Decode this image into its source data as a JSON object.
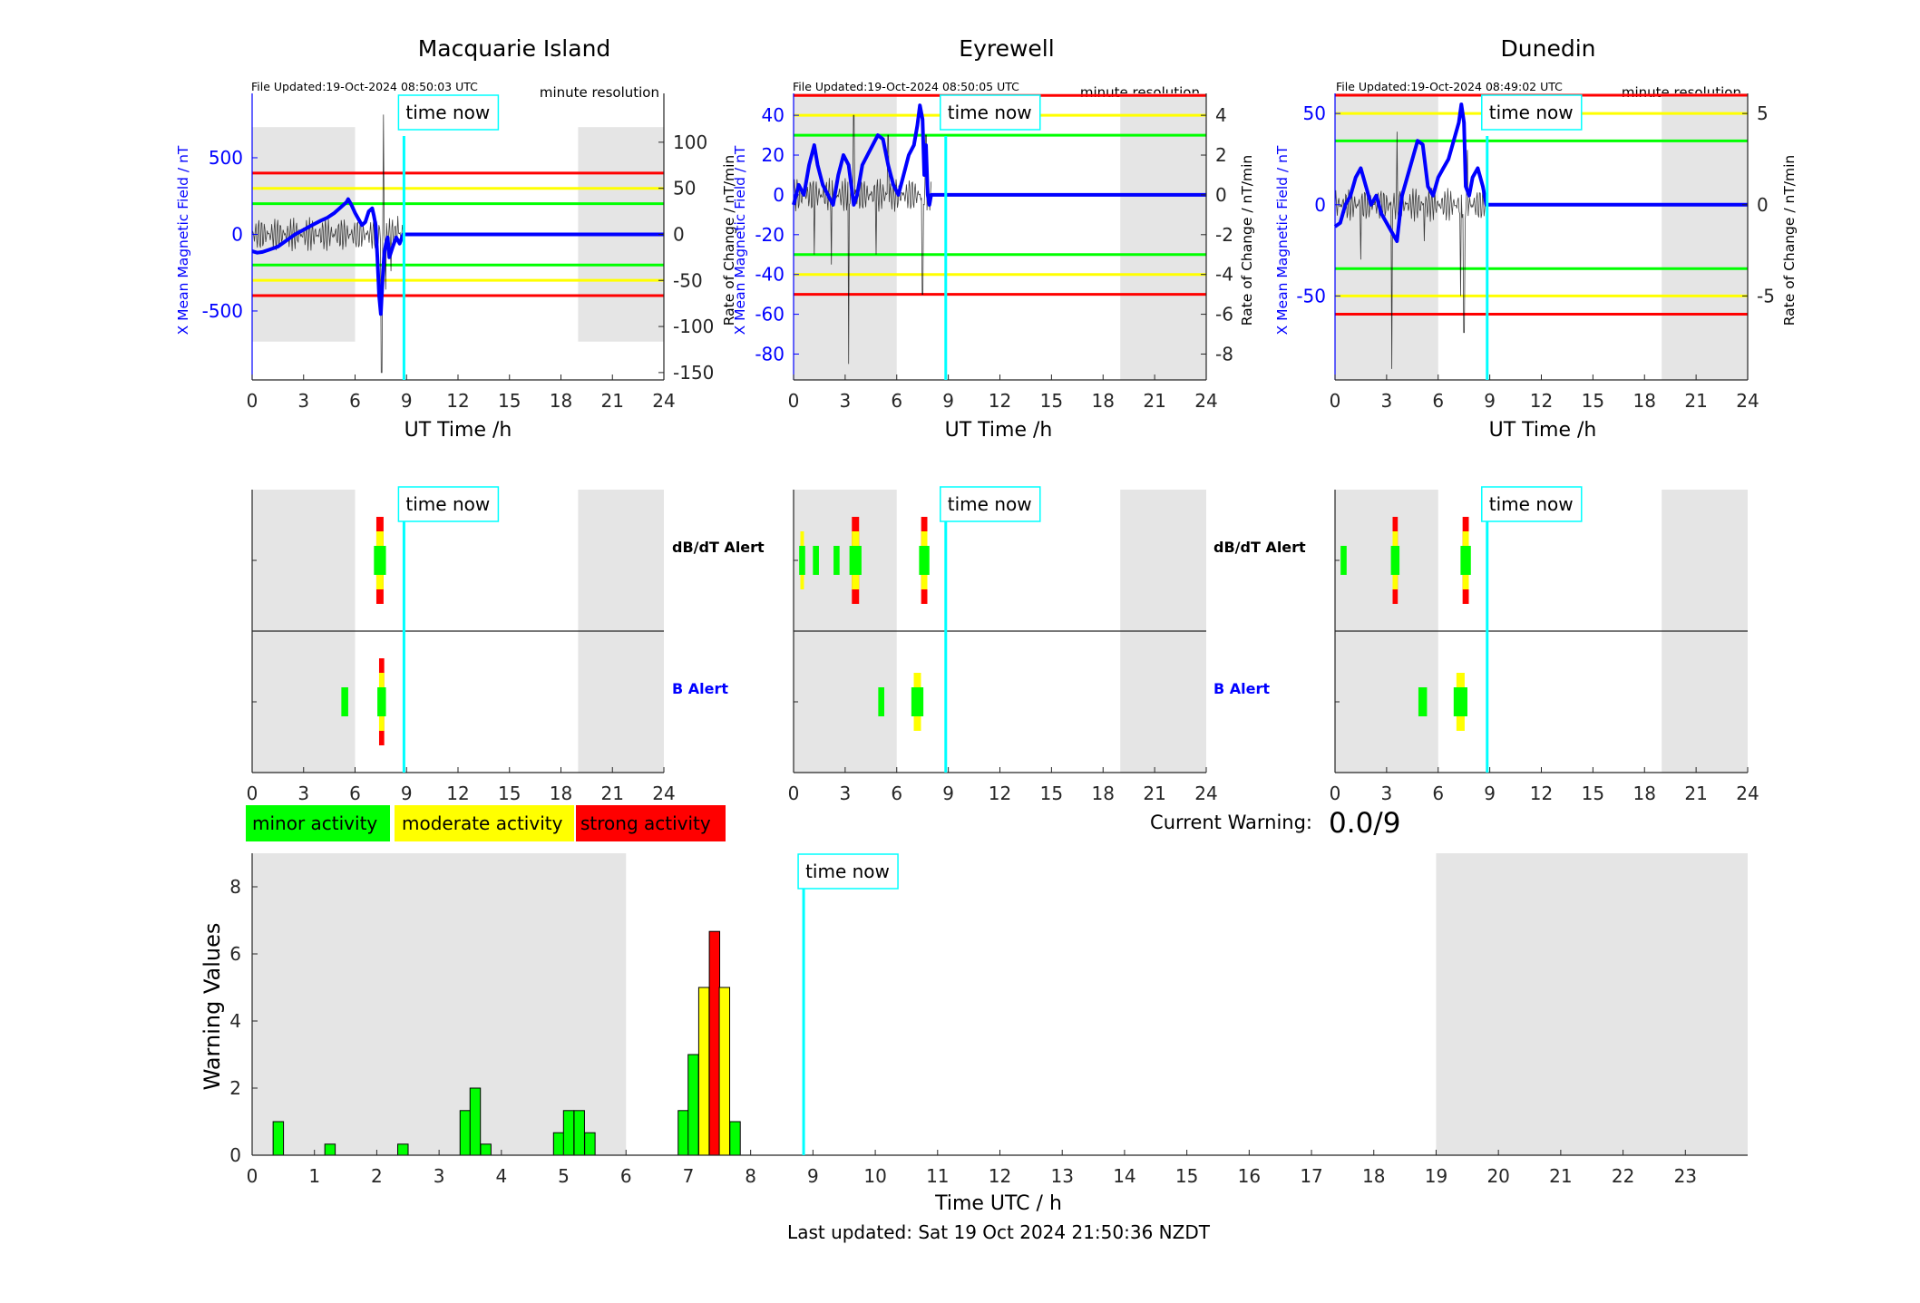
{
  "stations": [
    {
      "title": "Macquarie Island",
      "file_updated": "File Updated:19-Oct-2024 08:50:03 UTC",
      "resolution": "minute resolution",
      "left_axis_label": "X Mean Magnetic Field / nT",
      "right_axis_label": "Rate of Change / nT/min",
      "left_ylim": [
        -950,
        920
      ],
      "right_ylim": [
        -158,
        153
      ],
      "left_ticks": [
        -500,
        0,
        500
      ],
      "right_ticks": [
        -150,
        -100,
        -50,
        0,
        50,
        100
      ],
      "thresholds": [
        {
          "value": 400,
          "color": "#ff0000"
        },
        {
          "value": 300,
          "color": "#ffff00"
        },
        {
          "value": 200,
          "color": "#00ff00"
        },
        {
          "value": -200,
          "color": "#00ff00"
        },
        {
          "value": -300,
          "color": "#ffff00"
        },
        {
          "value": -400,
          "color": "#ff0000"
        }
      ],
      "field_trace": [
        [
          0,
          -110
        ],
        [
          0.3,
          -120
        ],
        [
          0.6,
          -115
        ],
        [
          1,
          -100
        ],
        [
          1.5,
          -80
        ],
        [
          2,
          -40
        ],
        [
          2.5,
          0
        ],
        [
          3,
          30
        ],
        [
          3.5,
          60
        ],
        [
          4,
          90
        ],
        [
          4.4,
          110
        ],
        [
          4.8,
          140
        ],
        [
          5.2,
          180
        ],
        [
          5.5,
          210
        ],
        [
          5.6,
          230
        ],
        [
          5.8,
          190
        ],
        [
          6,
          140
        ],
        [
          6.2,
          100
        ],
        [
          6.4,
          60
        ],
        [
          6.6,
          80
        ],
        [
          6.8,
          150
        ],
        [
          7,
          170
        ],
        [
          7.1,
          120
        ],
        [
          7.2,
          60
        ],
        [
          7.3,
          -150
        ],
        [
          7.4,
          -400
        ],
        [
          7.5,
          -520
        ],
        [
          7.6,
          -300
        ],
        [
          7.7,
          -120
        ],
        [
          7.8,
          -60
        ],
        [
          7.9,
          -20
        ],
        [
          8,
          -150
        ],
        [
          8.2,
          -80
        ],
        [
          8.4,
          -20
        ],
        [
          8.6,
          -60
        ],
        [
          8.8,
          0
        ],
        [
          24,
          0
        ]
      ],
      "field_trace_end_flat": 8.8,
      "rate_spikes": [
        [
          7.55,
          -150
        ],
        [
          7.65,
          130
        ],
        [
          7.8,
          -60
        ],
        [
          8.1,
          -40
        ],
        [
          8.5,
          20
        ]
      ],
      "alerts": {
        "dbdt": [
          {
            "t": 7.45,
            "level": 3,
            "width": 0.7
          }
        ],
        "b": [
          {
            "t": 5.4,
            "level": 1,
            "width": 0.4
          },
          {
            "t": 7.55,
            "level": 3,
            "width": 0.5
          }
        ]
      }
    },
    {
      "title": "Eyrewell",
      "file_updated": "File Updated:19-Oct-2024 08:50:05 UTC",
      "resolution": "minute resolution",
      "left_axis_label": "X Mean Magnetic Field / nT",
      "right_axis_label": "Rate of Change / nT/min",
      "left_ylim": [
        -93,
        51
      ],
      "right_ylim": [
        -9.3,
        5.1
      ],
      "left_ticks": [
        -80,
        -60,
        -40,
        -20,
        0,
        20,
        40
      ],
      "right_ticks": [
        -8,
        -6,
        -4,
        -2,
        0,
        2,
        4
      ],
      "thresholds": [
        {
          "value": 50,
          "color": "#ff0000"
        },
        {
          "value": 40,
          "color": "#ffff00"
        },
        {
          "value": 30,
          "color": "#00ff00"
        },
        {
          "value": -30,
          "color": "#00ff00"
        },
        {
          "value": -40,
          "color": "#ffff00"
        },
        {
          "value": -50,
          "color": "#ff0000"
        }
      ],
      "field_trace": [
        [
          0,
          -5
        ],
        [
          0.3,
          5
        ],
        [
          0.6,
          0
        ],
        [
          0.9,
          15
        ],
        [
          1.2,
          25
        ],
        [
          1.4,
          15
        ],
        [
          1.7,
          5
        ],
        [
          2,
          0
        ],
        [
          2.3,
          -5
        ],
        [
          2.6,
          10
        ],
        [
          2.9,
          20
        ],
        [
          3.2,
          15
        ],
        [
          3.5,
          -5
        ],
        [
          3.7,
          0
        ],
        [
          4,
          15
        ],
        [
          4.3,
          20
        ],
        [
          4.6,
          25
        ],
        [
          4.9,
          30
        ],
        [
          5.2,
          28
        ],
        [
          5.5,
          15
        ],
        [
          5.8,
          5
        ],
        [
          6.1,
          0
        ],
        [
          6.4,
          10
        ],
        [
          6.7,
          20
        ],
        [
          7,
          25
        ],
        [
          7.2,
          35
        ],
        [
          7.35,
          45
        ],
        [
          7.5,
          38
        ],
        [
          7.6,
          10
        ],
        [
          7.7,
          25
        ],
        [
          7.8,
          0
        ],
        [
          7.9,
          -5
        ],
        [
          8,
          0
        ],
        [
          24,
          0
        ]
      ],
      "field_trace_end_flat": 8.0,
      "rate_spikes": [
        [
          1.2,
          -3
        ],
        [
          2.2,
          -3.5
        ],
        [
          3.2,
          -8.5
        ],
        [
          3.5,
          4
        ],
        [
          4.8,
          -3
        ],
        [
          5.5,
          3
        ],
        [
          7.5,
          -5
        ],
        [
          7.7,
          3
        ]
      ],
      "alerts": {
        "dbdt": [
          {
            "t": 0.5,
            "level": 2,
            "width": 0.35
          },
          {
            "t": 1.3,
            "level": 1,
            "width": 0.35
          },
          {
            "t": 2.5,
            "level": 1,
            "width": 0.35
          },
          {
            "t": 3.6,
            "level": 3,
            "width": 0.7
          },
          {
            "t": 7.6,
            "level": 3,
            "width": 0.6
          }
        ],
        "b": [
          {
            "t": 5.1,
            "level": 1,
            "width": 0.35
          },
          {
            "t": 7.2,
            "level": 2,
            "width": 0.7
          }
        ]
      }
    },
    {
      "title": "Dunedin",
      "file_updated": "File Updated:19-Oct-2024 08:49:02 UTC",
      "resolution": "minute resolution",
      "left_axis_label": "X Mean Magnetic Field / nT",
      "right_axis_label": "Rate of Change / nT/min",
      "left_ylim": [
        -96,
        61
      ],
      "right_ylim": [
        -9.6,
        6.1
      ],
      "left_ticks": [
        -50,
        0,
        50
      ],
      "right_ticks": [
        -5,
        0,
        5
      ],
      "thresholds": [
        {
          "value": 60,
          "color": "#ff0000"
        },
        {
          "value": 50,
          "color": "#ffff00"
        },
        {
          "value": 35,
          "color": "#00ff00"
        },
        {
          "value": -35,
          "color": "#00ff00"
        },
        {
          "value": -50,
          "color": "#ffff00"
        },
        {
          "value": -60,
          "color": "#ff0000"
        }
      ],
      "field_trace": [
        [
          0,
          -12
        ],
        [
          0.3,
          -10
        ],
        [
          0.6,
          0
        ],
        [
          0.9,
          5
        ],
        [
          1.2,
          15
        ],
        [
          1.5,
          20
        ],
        [
          1.8,
          10
        ],
        [
          2.1,
          0
        ],
        [
          2.4,
          5
        ],
        [
          2.7,
          -5
        ],
        [
          3,
          -10
        ],
        [
          3.3,
          -15
        ],
        [
          3.6,
          -20
        ],
        [
          3.9,
          5
        ],
        [
          4.2,
          15
        ],
        [
          4.5,
          25
        ],
        [
          4.8,
          35
        ],
        [
          5.1,
          33
        ],
        [
          5.4,
          10
        ],
        [
          5.7,
          5
        ],
        [
          6,
          15
        ],
        [
          6.3,
          20
        ],
        [
          6.6,
          25
        ],
        [
          6.9,
          35
        ],
        [
          7.2,
          45
        ],
        [
          7.35,
          55
        ],
        [
          7.5,
          45
        ],
        [
          7.6,
          10
        ],
        [
          7.8,
          5
        ],
        [
          8,
          15
        ],
        [
          8.3,
          20
        ],
        [
          8.6,
          10
        ],
        [
          8.8,
          0
        ],
        [
          24,
          0
        ]
      ],
      "field_trace_end_flat": 8.8,
      "rate_spikes": [
        [
          1.5,
          -3
        ],
        [
          3.3,
          -9
        ],
        [
          3.6,
          4
        ],
        [
          5.2,
          -2
        ],
        [
          7.3,
          -5
        ],
        [
          7.5,
          -7
        ],
        [
          7.7,
          3
        ]
      ],
      "alerts": {
        "dbdt": [
          {
            "t": 0.5,
            "level": 1,
            "width": 0.35
          },
          {
            "t": 3.5,
            "level": 3,
            "width": 0.5
          },
          {
            "t": 7.6,
            "level": 3,
            "width": 0.6
          }
        ],
        "b": [
          {
            "t": 5.1,
            "level": 1,
            "width": 0.5
          },
          {
            "t": 7.3,
            "level": 2,
            "width": 0.8
          }
        ]
      }
    }
  ],
  "time_axis": {
    "label": "UT Time /h",
    "ticks": [
      0,
      3,
      6,
      9,
      12,
      15,
      18,
      21,
      24
    ],
    "night_shading": [
      [
        0,
        6
      ],
      [
        19,
        24
      ]
    ],
    "shade_color": "#e5e5e5"
  },
  "time_now": {
    "label": "time now",
    "t": 8.85,
    "color": "#00ffff"
  },
  "alert_labels": {
    "dbdt": "dB/dT Alert",
    "b": "B Alert"
  },
  "alert_colors": {
    "minor": "#00ff00",
    "moderate": "#ffff00",
    "strong": "#ff0000"
  },
  "legend": [
    {
      "label": "minor activity",
      "color": "#00ff00"
    },
    {
      "label": "moderate activity",
      "color": "#ffff00"
    },
    {
      "label": "strong activity",
      "color": "#ff0000"
    }
  ],
  "current_warning": {
    "label": "Current Warning:",
    "value": "0.0/9"
  },
  "chart_data": {
    "type": "bar",
    "xlabel": "Time UTC / h",
    "ylabel": "Warning Values",
    "xlim": [
      0,
      24
    ],
    "ylim": [
      0,
      9
    ],
    "x_ticks": [
      0,
      1,
      2,
      3,
      4,
      5,
      6,
      7,
      8,
      9,
      10,
      11,
      12,
      13,
      14,
      15,
      16,
      17,
      18,
      19,
      20,
      21,
      22,
      23
    ],
    "y_ticks": [
      0,
      2,
      4,
      6,
      8
    ],
    "night_shading": [
      [
        0,
        6
      ],
      [
        19,
        24
      ]
    ],
    "bin_width": 0.1667,
    "bars": [
      {
        "x": 0.42,
        "value": 1,
        "color": "#00ff00"
      },
      {
        "x": 1.25,
        "value": 0.33,
        "color": "#00ff00"
      },
      {
        "x": 2.42,
        "value": 0.33,
        "color": "#00ff00"
      },
      {
        "x": 3.42,
        "value": 1.33,
        "color": "#00ff00"
      },
      {
        "x": 3.58,
        "value": 2,
        "color": "#00ff00"
      },
      {
        "x": 3.75,
        "value": 0.33,
        "color": "#00ff00"
      },
      {
        "x": 4.92,
        "value": 0.67,
        "color": "#00ff00"
      },
      {
        "x": 5.08,
        "value": 1.33,
        "color": "#00ff00"
      },
      {
        "x": 5.25,
        "value": 1.33,
        "color": "#00ff00"
      },
      {
        "x": 5.42,
        "value": 0.67,
        "color": "#00ff00"
      },
      {
        "x": 6.92,
        "value": 1.33,
        "color": "#00ff00"
      },
      {
        "x": 7.08,
        "value": 3,
        "color": "#00ff00"
      },
      {
        "x": 7.25,
        "value": 5,
        "color": "#ffff00"
      },
      {
        "x": 7.42,
        "value": 6.67,
        "color": "#ff0000"
      },
      {
        "x": 7.58,
        "value": 5,
        "color": "#ffff00"
      },
      {
        "x": 7.75,
        "value": 1,
        "color": "#00ff00"
      }
    ],
    "time_now": 8.85
  },
  "last_updated": "Last updated: Sat 19 Oct 2024 21:50:36 NZDT"
}
